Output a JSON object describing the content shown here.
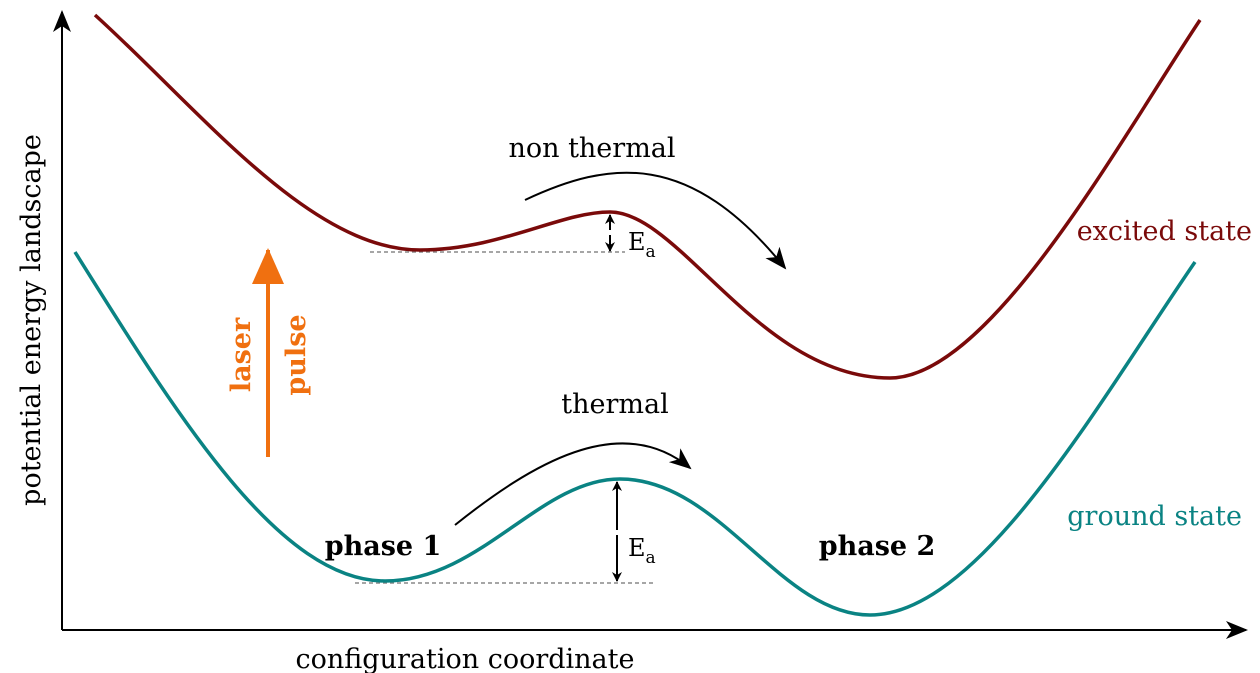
{
  "axes": {
    "x_label": "configuration coordinate",
    "y_label": "potential energy landscape"
  },
  "curves": [
    {
      "label": "excited state",
      "color": "#7a0a0a"
    },
    {
      "label": "ground state",
      "color": "#0a8383"
    }
  ],
  "transitions": [
    {
      "label": "non thermal"
    },
    {
      "label": "thermal"
    }
  ],
  "phases": [
    "phase 1",
    "phase 2"
  ],
  "barriers": [
    {
      "symbol": "E",
      "subscript": "a"
    },
    {
      "symbol": "E",
      "subscript": "a"
    }
  ],
  "laser": {
    "words": [
      "laser",
      "pulse"
    ],
    "color": "#f07010"
  }
}
